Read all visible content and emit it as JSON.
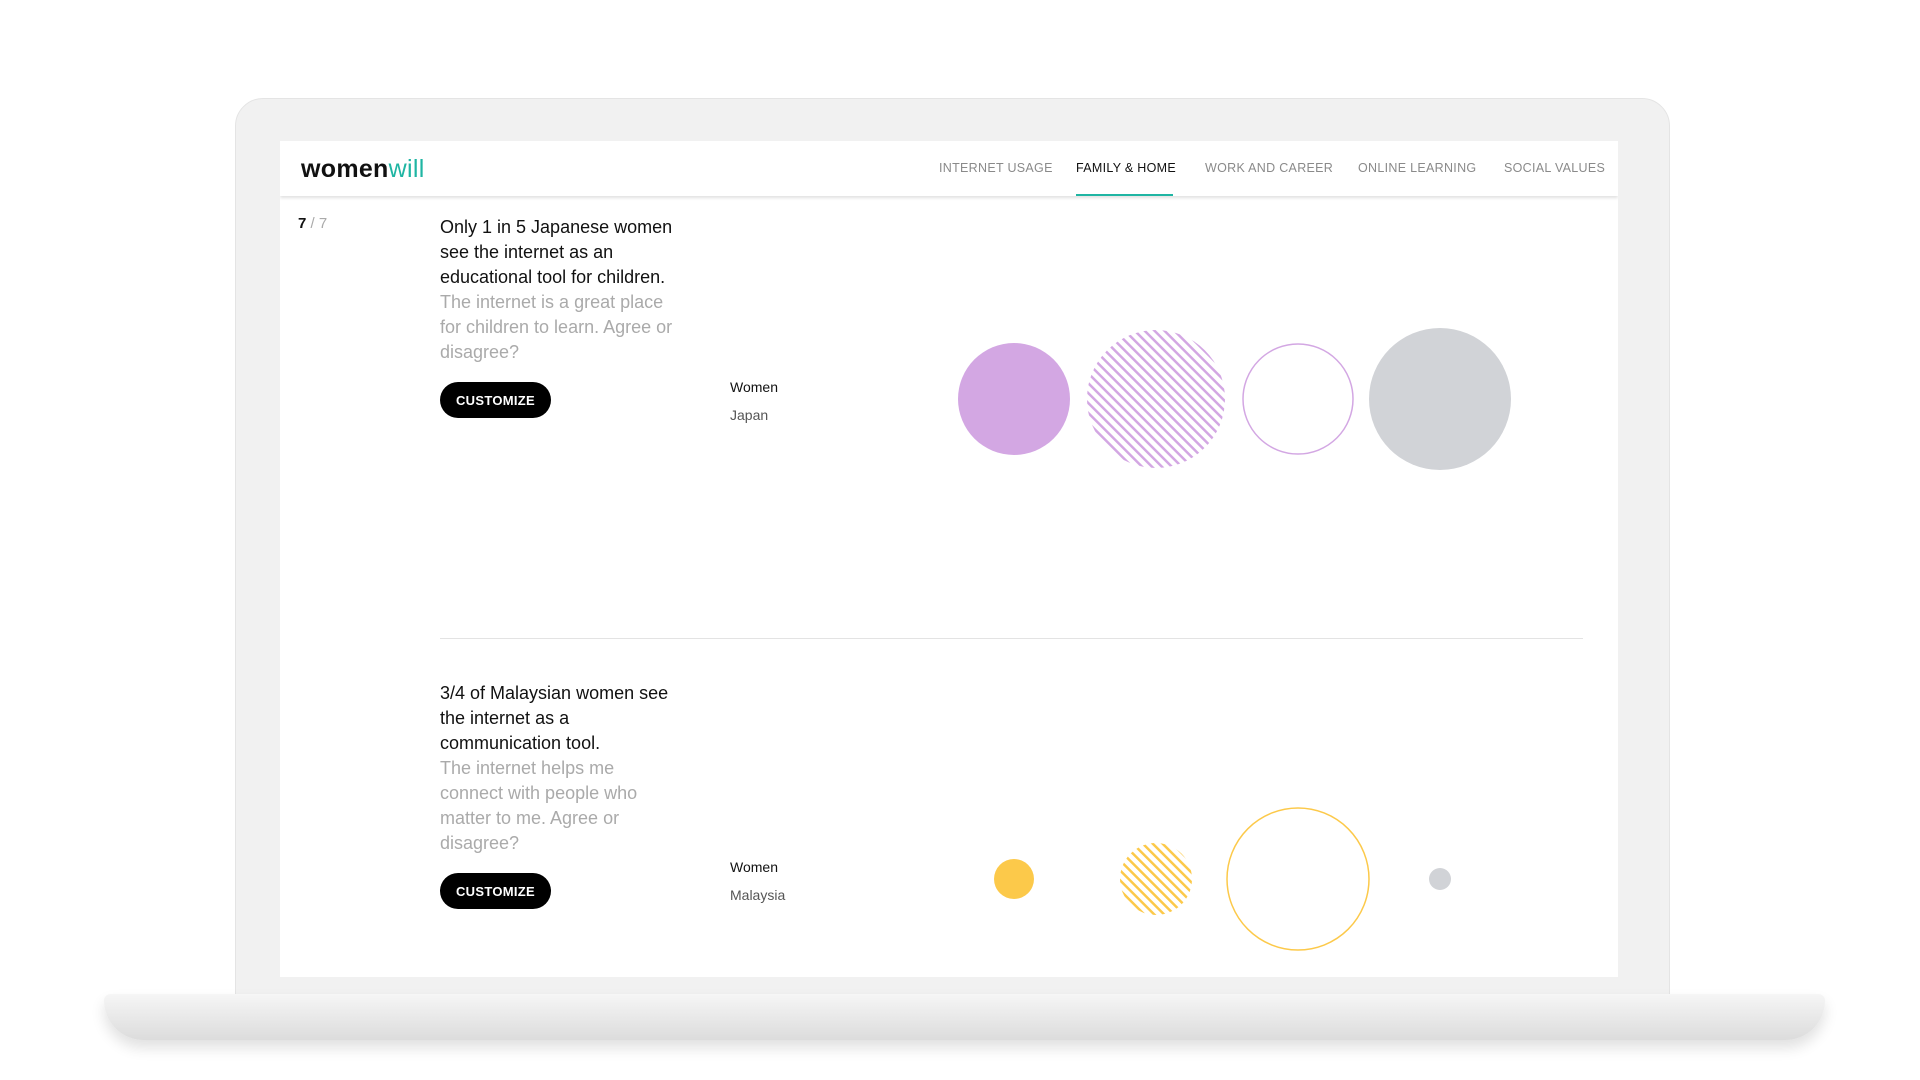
{
  "header": {
    "logo_main": "women",
    "logo_accent": "will",
    "nav": [
      {
        "label": "INTERNET USAGE",
        "active": false
      },
      {
        "label": "FAMILY & HOME",
        "active": true
      },
      {
        "label": "WORK AND CAREER",
        "active": false
      },
      {
        "label": "ONLINE LEARNING",
        "active": false
      },
      {
        "label": "SOCIAL VALUES",
        "active": false
      }
    ],
    "accent_color": "#1fb5a3"
  },
  "counter": {
    "current": "7",
    "total": "/ 7"
  },
  "sections": [
    {
      "headline": "Only 1 in 5 Japanese women see the internet as an educational tool for children.",
      "question": "The internet is a great place for children to learn. Agree or disagree?",
      "button": "CUSTOMIZE",
      "group": "Women",
      "country": "Japan",
      "color": "#d3a7e3",
      "circles": [
        {
          "style": "solid"
        },
        {
          "style": "hatched"
        },
        {
          "style": "outline"
        },
        {
          "style": "grey"
        }
      ]
    },
    {
      "headline": "3/4 of Malaysian women see the internet as a communication tool.",
      "question": "The internet helps me connect with people who matter to me. Agree or disagree?",
      "button": "CUSTOMIZE",
      "group": "Women",
      "country": "Malaysia",
      "color": "#fcc94a",
      "circles": [
        {
          "style": "solid"
        },
        {
          "style": "hatched"
        },
        {
          "style": "outline"
        },
        {
          "style": "grey"
        }
      ]
    }
  ],
  "grey_color": "#d1d3d7"
}
